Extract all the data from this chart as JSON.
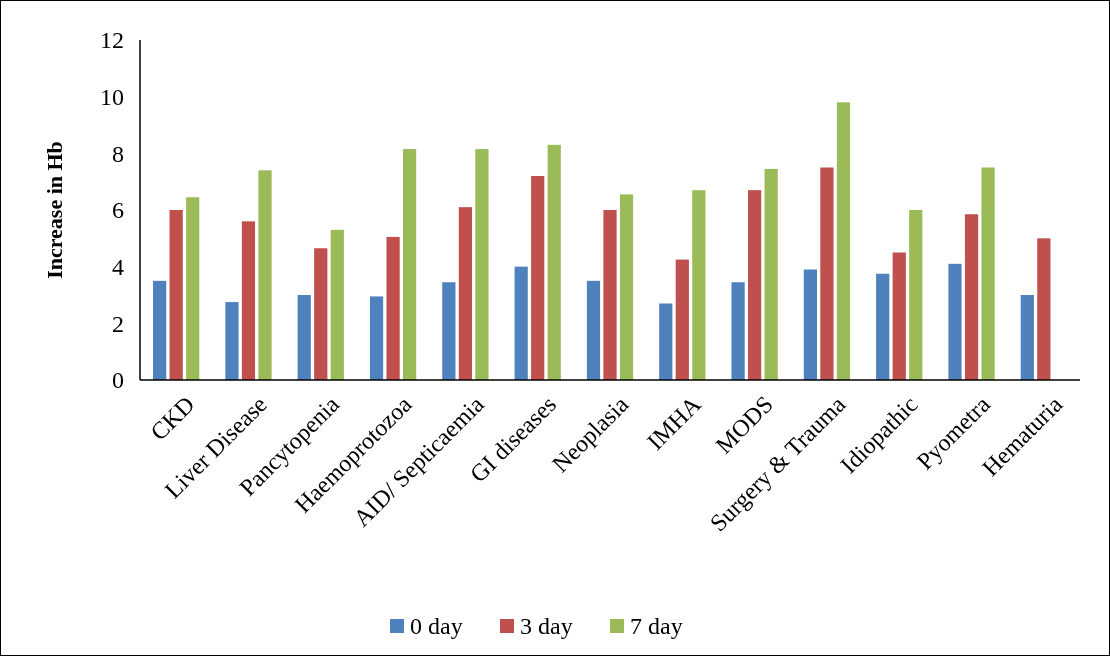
{
  "chart_data": {
    "type": "bar",
    "ylabel": "Increase in Hb",
    "categories": [
      "CKD",
      "Liver Disease",
      "Pancytopenia",
      "Haemoprotozoa",
      "AID/ Septicaemia",
      "GI diseases",
      "Neoplasia",
      "IMHA",
      "MODS",
      "Surgery & Trauma",
      "Idiopathic",
      "Pyometra",
      "Hematuria"
    ],
    "series": [
      {
        "name": "0 day",
        "color": "#4f81bd",
        "values": [
          3.5,
          2.75,
          3.0,
          2.95,
          3.45,
          4.0,
          3.5,
          2.7,
          3.45,
          3.9,
          3.75,
          4.1,
          3.0
        ]
      },
      {
        "name": "3 day",
        "color": "#c0504d",
        "values": [
          6.0,
          5.6,
          4.65,
          5.05,
          6.1,
          7.2,
          6.0,
          4.25,
          6.7,
          7.5,
          4.5,
          5.85,
          5.0
        ]
      },
      {
        "name": "7 day",
        "color": "#9bbb59",
        "values": [
          6.45,
          7.4,
          5.3,
          8.15,
          8.15,
          8.3,
          6.55,
          6.7,
          7.45,
          9.8,
          6.0,
          7.5,
          null
        ]
      }
    ],
    "ylim": [
      0,
      12
    ],
    "yticks": [
      0,
      2,
      4,
      6,
      8,
      10,
      12
    ],
    "grid": false,
    "legend": "bottom"
  }
}
